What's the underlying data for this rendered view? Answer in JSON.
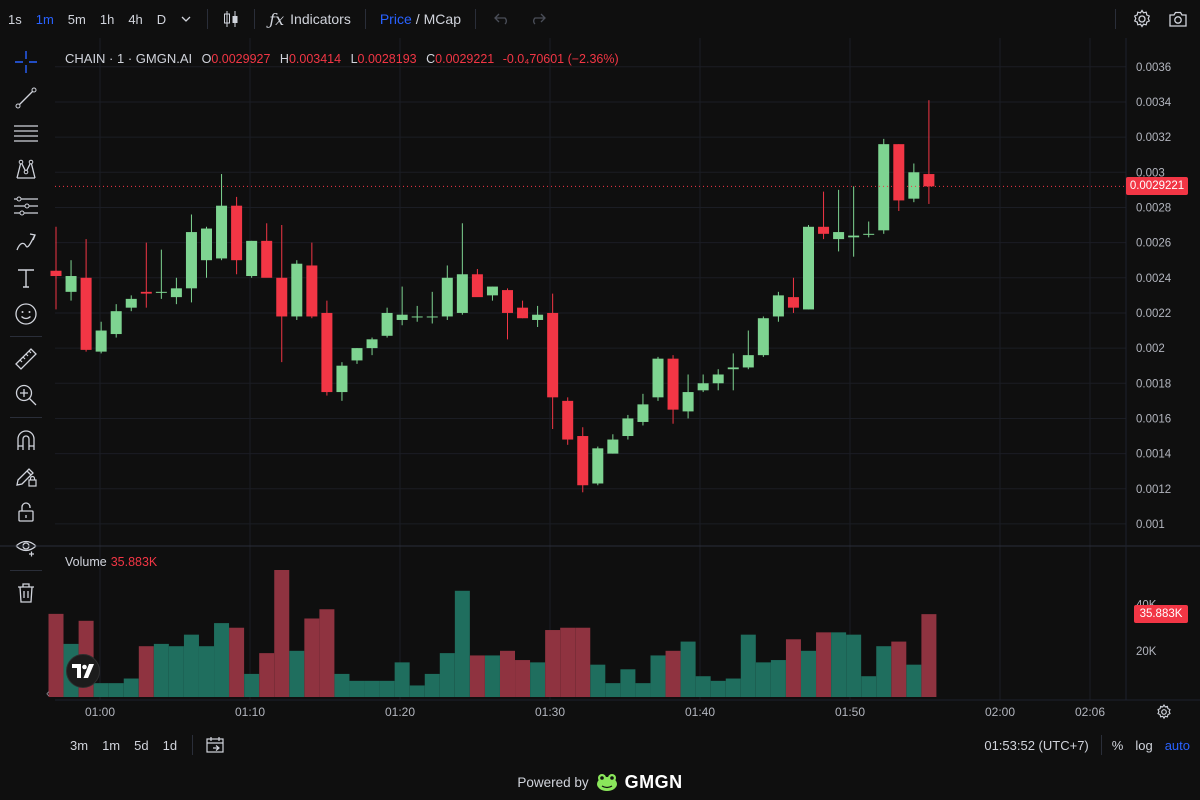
{
  "toolbar": {
    "timeframes": [
      {
        "label": "1s",
        "active": false
      },
      {
        "label": "1m",
        "active": true
      },
      {
        "label": "5m",
        "active": false
      },
      {
        "label": "1h",
        "active": false
      },
      {
        "label": "4h",
        "active": false
      },
      {
        "label": "D",
        "active": false
      }
    ],
    "indicators_label": "Indicators",
    "price_label": "Price",
    "slash": "/",
    "mcap_label": "MCap"
  },
  "legend": {
    "symbol": "CHAIN · 1 · GMGN.AI",
    "o_label": "O",
    "o_value": "0.0029927",
    "h_label": "H",
    "h_value": "0.003414",
    "l_label": "L",
    "l_value": "0.0028193",
    "c_label": "C",
    "c_value": "0.0029221",
    "change": "-0.0₄70601 (−2.36%)"
  },
  "volume_legend": {
    "label": "Volume",
    "value": "35.883K"
  },
  "price_axis": {
    "ticks": [
      "0.0036",
      "0.0034",
      "0.0032",
      "0.003",
      "0.0028",
      "0.0026",
      "0.0024",
      "0.0022",
      "0.002",
      "0.0018",
      "0.0016",
      "0.0014",
      "0.0012",
      "0.001"
    ],
    "last_price": "0.0029221"
  },
  "volume_axis": {
    "ticks": [
      "40K",
      "20K"
    ],
    "last_volume": "35.883K"
  },
  "time_axis": {
    "labels": [
      "01:00",
      "01:10",
      "01:20",
      "01:30",
      "01:40",
      "01:50",
      "02:00",
      "02:06"
    ]
  },
  "bottombar": {
    "ranges": [
      "3m",
      "1m",
      "5d",
      "1d"
    ],
    "clock": "01:53:52 (UTC+7)",
    "percent": "%",
    "log": "log",
    "auto": "auto"
  },
  "footer": {
    "powered_by": "Powered by",
    "brand": "GMGN"
  },
  "colors": {
    "up": "#7ed491",
    "down": "#f23645",
    "up_vol": "#1f6e5e",
    "down_vol": "#8f3340",
    "accent": "#2962ff"
  },
  "chart_data": {
    "type": "candlestick",
    "ylim": [
      0.00092,
      0.00365
    ],
    "vol_max": 55000,
    "candles": [
      {
        "o": 0.00244,
        "h": 0.00269,
        "l": 0.00222,
        "c": 0.00241,
        "v": 36000
      },
      {
        "o": 0.00232,
        "h": 0.0025,
        "l": 0.00227,
        "c": 0.00241,
        "v": 23000
      },
      {
        "o": 0.0024,
        "h": 0.00262,
        "l": 0.00198,
        "c": 0.00199,
        "v": 33000
      },
      {
        "o": 0.00198,
        "h": 0.00215,
        "l": 0.00197,
        "c": 0.0021,
        "v": 6000
      },
      {
        "o": 0.00208,
        "h": 0.00225,
        "l": 0.00206,
        "c": 0.00221,
        "v": 6000
      },
      {
        "o": 0.00223,
        "h": 0.0023,
        "l": 0.00221,
        "c": 0.00228,
        "v": 8000
      },
      {
        "o": 0.00232,
        "h": 0.0026,
        "l": 0.00223,
        "c": 0.00231,
        "v": 22000
      },
      {
        "o": 0.00232,
        "h": 0.00256,
        "l": 0.00228,
        "c": 0.00232,
        "v": 23000
      },
      {
        "o": 0.00229,
        "h": 0.0024,
        "l": 0.00225,
        "c": 0.00234,
        "v": 22000
      },
      {
        "o": 0.00234,
        "h": 0.00276,
        "l": 0.00226,
        "c": 0.00266,
        "v": 27000
      },
      {
        "o": 0.0025,
        "h": 0.00269,
        "l": 0.0024,
        "c": 0.00268,
        "v": 22000
      },
      {
        "o": 0.00251,
        "h": 0.00299,
        "l": 0.0025,
        "c": 0.00281,
        "v": 32000
      },
      {
        "o": 0.00281,
        "h": 0.00286,
        "l": 0.00242,
        "c": 0.0025,
        "v": 30000
      },
      {
        "o": 0.00241,
        "h": 0.00261,
        "l": 0.0024,
        "c": 0.00261,
        "v": 10000
      },
      {
        "o": 0.00261,
        "h": 0.00271,
        "l": 0.00241,
        "c": 0.0024,
        "v": 19000
      },
      {
        "o": 0.0024,
        "h": 0.0027,
        "l": 0.00192,
        "c": 0.00218,
        "v": 55000
      },
      {
        "o": 0.00218,
        "h": 0.0025,
        "l": 0.00216,
        "c": 0.00248,
        "v": 20000
      },
      {
        "o": 0.00247,
        "h": 0.0026,
        "l": 0.00217,
        "c": 0.00218,
        "v": 34000
      },
      {
        "o": 0.0022,
        "h": 0.00227,
        "l": 0.00173,
        "c": 0.00175,
        "v": 38000
      },
      {
        "o": 0.00175,
        "h": 0.00192,
        "l": 0.0017,
        "c": 0.0019,
        "v": 10000
      },
      {
        "o": 0.00193,
        "h": 0.002,
        "l": 0.00191,
        "c": 0.002,
        "v": 7000
      },
      {
        "o": 0.002,
        "h": 0.00206,
        "l": 0.00196,
        "c": 0.00205,
        "v": 7000
      },
      {
        "o": 0.00207,
        "h": 0.00223,
        "l": 0.00206,
        "c": 0.0022,
        "v": 7000
      },
      {
        "o": 0.00216,
        "h": 0.00235,
        "l": 0.00213,
        "c": 0.00219,
        "v": 15000
      },
      {
        "o": 0.00218,
        "h": 0.00224,
        "l": 0.00215,
        "c": 0.00218,
        "v": 5000
      },
      {
        "o": 0.00218,
        "h": 0.00232,
        "l": 0.00214,
        "c": 0.00218,
        "v": 10000
      },
      {
        "o": 0.00218,
        "h": 0.00247,
        "l": 0.00216,
        "c": 0.0024,
        "v": 19000
      },
      {
        "o": 0.0022,
        "h": 0.00271,
        "l": 0.00219,
        "c": 0.00242,
        "v": 46000
      },
      {
        "o": 0.00242,
        "h": 0.00245,
        "l": 0.0023,
        "c": 0.00229,
        "v": 18000
      },
      {
        "o": 0.0023,
        "h": 0.00235,
        "l": 0.00227,
        "c": 0.00235,
        "v": 18000
      },
      {
        "o": 0.00233,
        "h": 0.00234,
        "l": 0.00205,
        "c": 0.0022,
        "v": 20000
      },
      {
        "o": 0.00223,
        "h": 0.00227,
        "l": 0.00217,
        "c": 0.00217,
        "v": 16000
      },
      {
        "o": 0.00216,
        "h": 0.00224,
        "l": 0.00212,
        "c": 0.00219,
        "v": 15000
      },
      {
        "o": 0.0022,
        "h": 0.00231,
        "l": 0.00154,
        "c": 0.00172,
        "v": 29000
      },
      {
        "o": 0.0017,
        "h": 0.00172,
        "l": 0.00145,
        "c": 0.00148,
        "v": 30000
      },
      {
        "o": 0.0015,
        "h": 0.00155,
        "l": 0.00118,
        "c": 0.00122,
        "v": 30000
      },
      {
        "o": 0.00123,
        "h": 0.00144,
        "l": 0.00122,
        "c": 0.00143,
        "v": 14000
      },
      {
        "o": 0.0014,
        "h": 0.00151,
        "l": 0.0014,
        "c": 0.00148,
        "v": 6000
      },
      {
        "o": 0.0015,
        "h": 0.00162,
        "l": 0.00148,
        "c": 0.0016,
        "v": 12000
      },
      {
        "o": 0.00158,
        "h": 0.00174,
        "l": 0.00156,
        "c": 0.00168,
        "v": 6000
      },
      {
        "o": 0.00172,
        "h": 0.00195,
        "l": 0.0017,
        "c": 0.00194,
        "v": 18000
      },
      {
        "o": 0.00194,
        "h": 0.00196,
        "l": 0.00157,
        "c": 0.00165,
        "v": 20000
      },
      {
        "o": 0.00164,
        "h": 0.00185,
        "l": 0.0016,
        "c": 0.00175,
        "v": 24000
      },
      {
        "o": 0.00176,
        "h": 0.00185,
        "l": 0.00175,
        "c": 0.0018,
        "v": 9000
      },
      {
        "o": 0.0018,
        "h": 0.00188,
        "l": 0.00176,
        "c": 0.00185,
        "v": 7000
      },
      {
        "o": 0.00188,
        "h": 0.00197,
        "l": 0.00176,
        "c": 0.00189,
        "v": 8000
      },
      {
        "o": 0.00189,
        "h": 0.0021,
        "l": 0.00188,
        "c": 0.00196,
        "v": 27000
      },
      {
        "o": 0.00196,
        "h": 0.00218,
        "l": 0.00195,
        "c": 0.00217,
        "v": 15000
      },
      {
        "o": 0.00218,
        "h": 0.00232,
        "l": 0.00215,
        "c": 0.0023,
        "v": 16000
      },
      {
        "o": 0.00229,
        "h": 0.0024,
        "l": 0.0022,
        "c": 0.00223,
        "v": 25000
      },
      {
        "o": 0.00222,
        "h": 0.0027,
        "l": 0.00222,
        "c": 0.00269,
        "v": 20000
      },
      {
        "o": 0.00269,
        "h": 0.00289,
        "l": 0.00262,
        "c": 0.00265,
        "v": 28000
      },
      {
        "o": 0.00262,
        "h": 0.0029,
        "l": 0.00255,
        "c": 0.00266,
        "v": 28000
      },
      {
        "o": 0.00263,
        "h": 0.00292,
        "l": 0.00252,
        "c": 0.00264,
        "v": 27000
      },
      {
        "o": 0.00265,
        "h": 0.00272,
        "l": 0.00263,
        "c": 0.00265,
        "v": 9000
      },
      {
        "o": 0.00267,
        "h": 0.00319,
        "l": 0.00265,
        "c": 0.00316,
        "v": 22000
      },
      {
        "o": 0.00316,
        "h": 0.00316,
        "l": 0.00278,
        "c": 0.00284,
        "v": 24000
      },
      {
        "o": 0.00285,
        "h": 0.00305,
        "l": 0.00283,
        "c": 0.003,
        "v": 14000
      },
      {
        "o": 0.00299,
        "h": 0.00341,
        "l": 0.00282,
        "c": 0.00292,
        "v": 35883
      }
    ]
  }
}
